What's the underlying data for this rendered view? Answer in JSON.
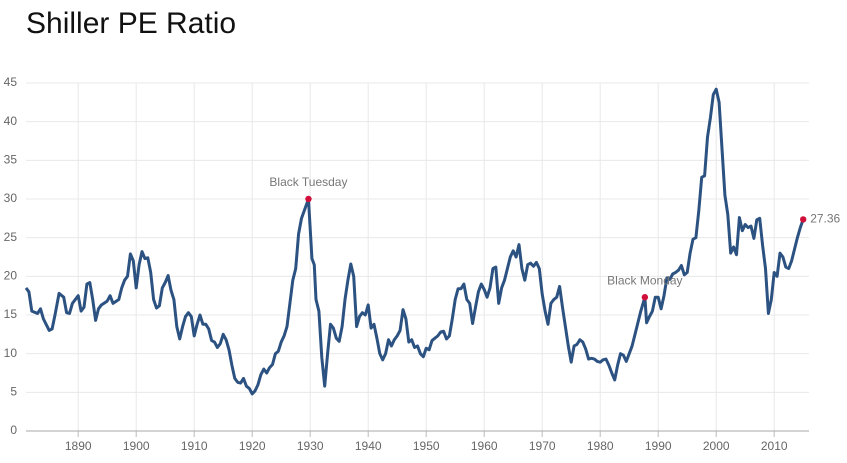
{
  "chart_data": {
    "type": "line",
    "title": "Shiller PE Ratio",
    "color": "#2c5282",
    "x": [
      1881,
      1881.5,
      1882,
      1883,
      1883.5,
      1884,
      1885,
      1885.5,
      1886,
      1886.7,
      1887.5,
      1888,
      1888.5,
      1889,
      1890,
      1890.5,
      1891,
      1891.5,
      1892,
      1892.5,
      1893,
      1893.5,
      1894,
      1895,
      1895.5,
      1896,
      1897,
      1897.5,
      1898,
      1898.5,
      1899,
      1899.5,
      1900,
      1900.5,
      1901,
      1901.5,
      1902,
      1902.5,
      1903,
      1903.5,
      1904,
      1904.5,
      1905,
      1905.5,
      1906,
      1906.5,
      1907,
      1907.5,
      1908,
      1908.5,
      1909,
      1909.5,
      1910,
      1910.5,
      1911,
      1911.5,
      1912,
      1912.5,
      1913,
      1913.5,
      1914,
      1914.5,
      1915,
      1915.5,
      1916,
      1916.5,
      1917,
      1917.5,
      1918,
      1918.5,
      1919,
      1919.5,
      1920,
      1920.5,
      1921,
      1921.5,
      1922,
      1922.5,
      1923,
      1923.5,
      1924,
      1924.5,
      1925,
      1925.5,
      1926,
      1926.5,
      1927,
      1927.5,
      1928,
      1928.5,
      1929.7,
      1930.3,
      1930.7,
      1931,
      1931.5,
      1932,
      1932.5,
      1933,
      1933.5,
      1934,
      1934.5,
      1935,
      1935.5,
      1936,
      1936.5,
      1937,
      1937.5,
      1938,
      1938.5,
      1939,
      1939.5,
      1940,
      1940.5,
      1941,
      1941.5,
      1942,
      1942.5,
      1943,
      1943.5,
      1944,
      1944.5,
      1945,
      1945.5,
      1946,
      1946.5,
      1947,
      1947.5,
      1948,
      1948.5,
      1949,
      1949.5,
      1950,
      1950.5,
      1951,
      1951.5,
      1952,
      1952.5,
      1953,
      1953.5,
      1954,
      1954.5,
      1955,
      1955.5,
      1956,
      1956.5,
      1957,
      1957.5,
      1958,
      1958.5,
      1959,
      1959.5,
      1960,
      1960.5,
      1961,
      1961.5,
      1962,
      1962.5,
      1963,
      1963.5,
      1964,
      1964.5,
      1965,
      1965.5,
      1966,
      1966.5,
      1967,
      1967.5,
      1968,
      1968.5,
      1969,
      1969.5,
      1970,
      1970.5,
      1971,
      1971.5,
      1972,
      1972.5,
      1973,
      1973.5,
      1974,
      1974.5,
      1975,
      1975.5,
      1976,
      1976.5,
      1977,
      1977.5,
      1978,
      1978.5,
      1979,
      1979.5,
      1980,
      1980.5,
      1981,
      1981.5,
      1982,
      1982.5,
      1983,
      1983.5,
      1984,
      1984.5,
      1985,
      1985.5,
      1986,
      1986.5,
      1987,
      1987.7,
      1988,
      1988.5,
      1989,
      1989.5,
      1990,
      1990.5,
      1991,
      1991.5,
      1992,
      1992.5,
      1993,
      1993.5,
      1994,
      1994.5,
      1995,
      1995.5,
      1996,
      1996.5,
      1997,
      1997.5,
      1998,
      1998.5,
      1999,
      1999.5,
      2000,
      2000.5,
      2001,
      2001.5,
      2002,
      2002.5,
      2003,
      2003.5,
      2004,
      2004.5,
      2005,
      2005.5,
      2006,
      2006.5,
      2007,
      2007.5,
      2008,
      2008.5,
      2009,
      2009.5,
      2010,
      2010.5,
      2011,
      2011.5,
      2012,
      2012.5,
      2013,
      2013.5,
      2014,
      2014.5,
      2015
    ],
    "values": [
      18.5,
      18.0,
      15.5,
      15.2,
      15.8,
      14.5,
      13.0,
      13.2,
      15.0,
      17.8,
      17.3,
      15.3,
      15.2,
      16.5,
      17.5,
      15.5,
      16.0,
      19.0,
      19.2,
      17.0,
      14.3,
      15.8,
      16.3,
      16.8,
      17.5,
      16.5,
      17.0,
      18.5,
      19.5,
      20.0,
      22.9,
      22.0,
      18.5,
      21.5,
      23.2,
      22.3,
      22.4,
      20.5,
      17.0,
      15.9,
      16.2,
      18.5,
      19.2,
      20.1,
      18.2,
      17.0,
      13.5,
      11.9,
      13.5,
      14.8,
      15.3,
      14.8,
      12.3,
      13.8,
      15.0,
      13.8,
      13.8,
      13.2,
      11.7,
      11.5,
      10.8,
      11.3,
      12.5,
      11.8,
      10.5,
      8.5,
      6.8,
      6.3,
      6.2,
      6.8,
      5.8,
      5.5,
      4.8,
      5.2,
      6.0,
      7.3,
      8.0,
      7.5,
      8.2,
      8.6,
      10.0,
      10.3,
      11.5,
      12.3,
      13.5,
      16.5,
      19.5,
      21.0,
      25.5,
      27.5,
      30.0,
      22.3,
      21.5,
      17.0,
      15.5,
      9.5,
      5.8,
      10.0,
      13.8,
      13.3,
      12.0,
      11.6,
      13.5,
      17.0,
      19.5,
      21.6,
      20.0,
      13.5,
      14.8,
      15.3,
      15.0,
      16.3,
      13.3,
      13.8,
      12.0,
      10.0,
      9.2,
      10.0,
      11.8,
      11.0,
      11.8,
      12.3,
      13.0,
      15.7,
      14.5,
      11.5,
      11.8,
      10.8,
      11.0,
      10.0,
      9.6,
      10.7,
      10.5,
      11.7,
      12.0,
      12.3,
      12.8,
      12.9,
      11.9,
      12.3,
      14.5,
      17.0,
      18.4,
      18.4,
      19.0,
      17.0,
      16.5,
      13.9,
      16.0,
      18.0,
      19.0,
      18.3,
      17.3,
      18.5,
      21.0,
      21.2,
      16.5,
      18.5,
      19.5,
      21.0,
      22.5,
      23.3,
      22.5,
      24.1,
      21.0,
      19.5,
      21.5,
      21.7,
      21.3,
      21.8,
      21.0,
      17.7,
      15.5,
      13.8,
      16.5,
      17.0,
      17.3,
      18.7,
      16.0,
      13.5,
      11.0,
      8.9,
      11.0,
      11.2,
      11.8,
      11.5,
      10.6,
      9.3,
      9.4,
      9.3,
      9.0,
      8.9,
      9.2,
      9.3,
      8.5,
      7.5,
      6.6,
      8.5,
      10.0,
      9.8,
      9.0,
      10.0,
      11.0,
      12.5,
      14.0,
      15.5,
      17.3,
      14.0,
      14.8,
      15.5,
      17.3,
      17.3,
      15.8,
      17.5,
      19.8,
      19.6,
      20.3,
      20.5,
      20.8,
      21.4,
      20.2,
      20.5,
      23.0,
      24.8,
      25.0,
      28.5,
      32.8,
      33.0,
      38.0,
      40.5,
      43.5,
      44.2,
      42.5,
      36.5,
      30.5,
      28.0,
      23.0,
      23.8,
      22.8,
      27.6,
      25.9,
      26.7,
      26.3,
      26.5,
      24.9,
      27.3,
      27.5,
      24.0,
      21.0,
      15.2,
      17.0,
      20.5,
      20.0,
      23.0,
      22.5,
      21.2,
      21.0,
      22.0,
      23.5,
      25.0,
      26.3,
      27.36
    ],
    "annotations": [
      {
        "label": "Black Tuesday",
        "x": 1929.7,
        "y": 30.0
      },
      {
        "label": "Black Monday",
        "x": 1987.7,
        "y": 17.3
      },
      {
        "x": 2015,
        "y": 27.36
      }
    ],
    "marker_color": "#d0103a",
    "xlim": [
      1881,
      2016
    ],
    "xticks": [
      1890,
      1900,
      1910,
      1920,
      1930,
      1940,
      1950,
      1960,
      1970,
      1980,
      1990,
      2000,
      2010
    ],
    "ylim": [
      0,
      45
    ],
    "yticks": [
      0,
      5,
      10,
      15,
      20,
      25,
      30,
      35,
      40,
      45
    ],
    "grid": true
  }
}
